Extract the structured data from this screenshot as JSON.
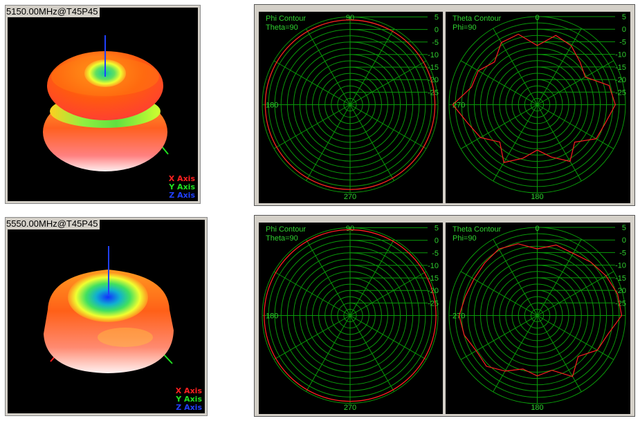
{
  "views": [
    {
      "frequency_label": "5150.00MHz@T45P45",
      "axes_legend": [
        "X Axis",
        "Y Axis",
        "Z Axis"
      ],
      "axis_colors": [
        "#ff2020",
        "#20e020",
        "#2040ff"
      ],
      "polar": [
        {
          "title": "Phi Contour",
          "subtitle": "Theta=90"
        },
        {
          "title": "Theta Contour",
          "subtitle": "Phi=90"
        }
      ]
    },
    {
      "frequency_label": "5550.00MHz@T45P45",
      "axes_legend": [
        "X Axis",
        "Y Axis",
        "Z Axis"
      ],
      "axis_colors": [
        "#ff2020",
        "#20e020",
        "#2040ff"
      ],
      "polar": [
        {
          "title": "Phi Contour",
          "subtitle": "Theta=90"
        },
        {
          "title": "Theta Contour",
          "subtitle": "Phi=90"
        }
      ]
    }
  ],
  "chart_data": [
    {
      "type": "polar",
      "title": "Phi Contour",
      "subtitle": "Theta=90",
      "radial_ticks": [
        "5",
        "0",
        "-5",
        "-10",
        "-15",
        "-20",
        "-25"
      ],
      "rlim": [
        -30,
        5
      ],
      "angle_labels": [
        "90",
        "180",
        "270"
      ],
      "series": [
        {
          "angle_deg": [
            0,
            45,
            90,
            135,
            180,
            225,
            270,
            315
          ],
          "values": [
            3.8,
            3.8,
            3.8,
            3.8,
            3.8,
            3.8,
            3.8,
            3.8
          ]
        }
      ]
    },
    {
      "type": "polar",
      "title": "Theta Contour",
      "subtitle": "Phi=90",
      "radial_ticks": [
        "5",
        "0",
        "-5",
        "-10",
        "-15",
        "-20",
        "-25"
      ],
      "rlim": [
        -30,
        5
      ],
      "angle_labels": [
        "0",
        "270",
        "180"
      ],
      "series": [
        {
          "angle_deg": [
            0,
            15,
            30,
            45,
            60,
            75,
            90,
            105,
            120,
            135,
            150,
            165,
            180,
            195,
            210,
            225,
            240,
            255,
            270,
            285,
            300,
            315,
            330,
            345
          ],
          "values": [
            -6.5,
            -1.5,
            -3.0,
            -6.0,
            -8.0,
            -0.5,
            1.0,
            -2.0,
            -3.0,
            -9.0,
            -4.0,
            -8.5,
            -12.0,
            -8.0,
            -3.5,
            -9.0,
            -4.0,
            -1.5,
            3.5,
            -3.0,
            -3.0,
            -6.0,
            -1.5,
            -1.0
          ]
        }
      ]
    },
    {
      "type": "polar",
      "title": "Phi Contour",
      "subtitle": "Theta=90",
      "radial_ticks": [
        "5",
        "0",
        "-5",
        "-10",
        "-15",
        "-20",
        "-25"
      ],
      "rlim": [
        -30,
        5
      ],
      "angle_labels": [
        "90",
        "180",
        "270"
      ],
      "series": [
        {
          "angle_deg": [
            0,
            45,
            90,
            135,
            180,
            225,
            270,
            315
          ],
          "values": [
            4.2,
            4.2,
            4.2,
            4.2,
            4.2,
            4.2,
            4.2,
            4.2
          ]
        }
      ]
    },
    {
      "type": "polar",
      "title": "Theta Contour",
      "subtitle": "Phi=90",
      "radial_ticks": [
        "5",
        "0",
        "-5",
        "-10",
        "-15",
        "-20",
        "-25"
      ],
      "rlim": [
        -30,
        5
      ],
      "angle_labels": [
        "0",
        "270",
        "180"
      ],
      "series": [
        {
          "angle_deg": [
            0,
            15,
            30,
            45,
            60,
            75,
            90,
            105,
            120,
            135,
            150,
            165,
            180,
            195,
            210,
            225,
            240,
            255,
            270,
            285,
            300,
            315,
            330,
            345
          ],
          "values": [
            -3.5,
            -1.0,
            -1.5,
            0.0,
            1.5,
            3.0,
            3.5,
            -1.0,
            -2.5,
            -7.0,
            -2.0,
            -7.5,
            -6.0,
            -8.0,
            -4.5,
            -1.5,
            -2.0,
            0.0,
            1.0,
            -0.5,
            -1.0,
            -0.5,
            0.5,
            -0.5
          ]
        }
      ]
    }
  ]
}
